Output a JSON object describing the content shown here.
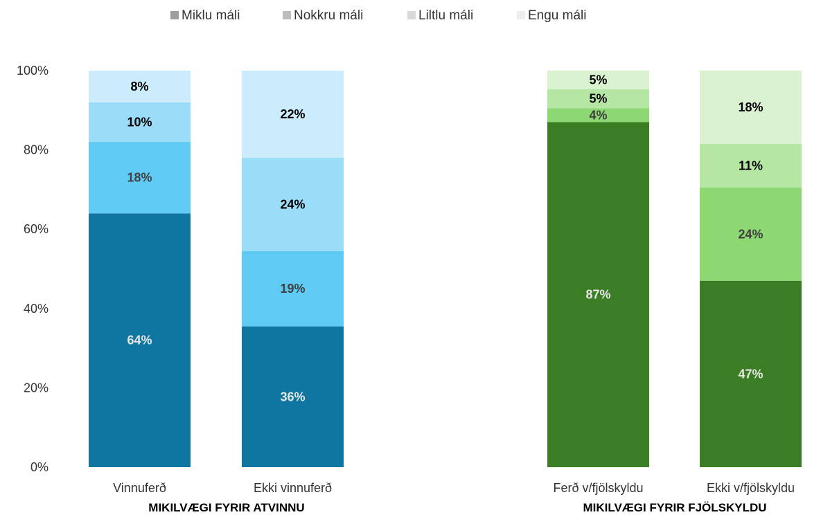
{
  "chart_data": {
    "type": "bar",
    "stacked": true,
    "percent_stacked": true,
    "y_ticks": [
      "0%",
      "20%",
      "40%",
      "60%",
      "80%",
      "100%"
    ],
    "ylim": [
      0,
      100
    ],
    "grid": false,
    "legend_position": "top",
    "legend": [
      {
        "name": "Miklu máli",
        "color": "#9e9e9e"
      },
      {
        "name": "Nokkru máli",
        "color": "#bdbdbd"
      },
      {
        "name": "Liltlu máli",
        "color": "#d9d9d9"
      },
      {
        "name": "Engu máli",
        "color": "#eeeeee"
      }
    ],
    "groups": [
      {
        "label": "MIKILVÆGI FYRIR ATVINNU",
        "bars": [
          {
            "category": "Vinnuferð",
            "segments": [
              {
                "series": "Miklu máli",
                "value": 64,
                "label": "64%",
                "color": "#0e76a1",
                "label_color": "#e6e6e6"
              },
              {
                "series": "Nokkru máli",
                "value": 18,
                "label": "18%",
                "color": "#5fcaf3",
                "label_color": "#404040"
              },
              {
                "series": "Liltlu máli",
                "value": 10,
                "label": "10%",
                "color": "#9bdcf8",
                "label_color": "#000000"
              },
              {
                "series": "Engu máli",
                "value": 8,
                "label": "8%",
                "color": "#cbecfc",
                "label_color": "#000000"
              }
            ]
          },
          {
            "category": "Ekki vinnuferð",
            "segments": [
              {
                "series": "Miklu máli",
                "value": 35.5,
                "label": "36%",
                "color": "#0e76a1",
                "label_color": "#e6e6e6"
              },
              {
                "series": "Nokkru máli",
                "value": 19,
                "label": "19%",
                "color": "#5fcaf3",
                "label_color": "#404040"
              },
              {
                "series": "Liltlu máli",
                "value": 23.5,
                "label": "24%",
                "color": "#9bdcf8",
                "label_color": "#000000"
              },
              {
                "series": "Engu máli",
                "value": 22,
                "label": "22%",
                "color": "#cbecfc",
                "label_color": "#000000"
              }
            ]
          }
        ]
      },
      {
        "label": "MIKILVÆGI FYRIR FJÖLSKYLDU",
        "bars": [
          {
            "category": "Ferð v/fjölskyldu",
            "segments": [
              {
                "series": "Miklu máli",
                "value": 87,
                "label": "87%",
                "color": "#3b7d24",
                "label_color": "#e6e6e6"
              },
              {
                "series": "Nokkru máli",
                "value": 3.5,
                "label": "4%",
                "color": "#8ed873",
                "label_color": "#404040"
              },
              {
                "series": "Liltlu máli",
                "value": 4.8,
                "label": "5%",
                "color": "#b5e6a3",
                "label_color": "#000000"
              },
              {
                "series": "Engu máli",
                "value": 4.7,
                "label": "5%",
                "color": "#daf2d0",
                "label_color": "#000000"
              }
            ]
          },
          {
            "category": "Ekki v/fjölskyldu",
            "segments": [
              {
                "series": "Miklu máli",
                "value": 47,
                "label": "47%",
                "color": "#3b7d24",
                "label_color": "#e6e6e6"
              },
              {
                "series": "Nokkru máli",
                "value": 23.5,
                "label": "24%",
                "color": "#8ed873",
                "label_color": "#404040"
              },
              {
                "series": "Liltlu máli",
                "value": 11,
                "label": "11%",
                "color": "#b5e6a3",
                "label_color": "#000000"
              },
              {
                "series": "Engu máli",
                "value": 18.5,
                "label": "18%",
                "color": "#daf2d0",
                "label_color": "#000000"
              }
            ]
          }
        ]
      }
    ]
  }
}
